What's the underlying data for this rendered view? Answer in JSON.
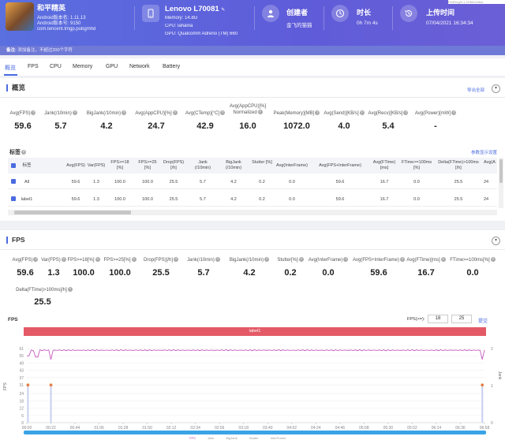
{
  "header": {
    "app_name": "和平精英",
    "android_ver_label": "Android版本名:",
    "android_ver_value": "1.11.13",
    "android_code_label": "Android版本号:",
    "android_code_value": "9150",
    "package": "com.tencent.tmgp.pubgmhd",
    "device_name": "Lenovo L70081",
    "memory": "Memory: 14.8G",
    "cpu": "CPU: lahaina",
    "gpu": "GPU: Qualcomm Adreno (TM) 660",
    "creator_title": "创建者",
    "creator_value": "金飞的猫猫",
    "duration_title": "时长",
    "duration_value": "0h 7m 4s",
    "upload_title": "上传时间",
    "upload_value": "07/04/2021 16:34:34",
    "topright_fragment": "PerfDog/3.1.210604:Mac",
    "icons": [
      "phone-icon",
      "user-icon",
      "clock-icon",
      "history-icon"
    ]
  },
  "notebar": {
    "label": "备注:",
    "text": "添加备注，不超过200个字符"
  },
  "tabs": [
    {
      "label": "概览",
      "active": true
    },
    {
      "label": "FPS"
    },
    {
      "label": "CPU"
    },
    {
      "label": "Memory"
    },
    {
      "label": "GPU"
    },
    {
      "label": "Network"
    },
    {
      "label": "Battery"
    }
  ],
  "overview": {
    "title": "概览",
    "export": "导出全部",
    "metrics": [
      {
        "label": "Avg(FPS)",
        "value": "59.6"
      },
      {
        "label": "Jank(/10min)",
        "value": "5.7"
      },
      {
        "label": "BigJank(/10min)",
        "value": "4.2"
      },
      {
        "label": "Avg(AppCPU)[%]",
        "value": "24.7"
      },
      {
        "label": "Avg(CTemp)[°C]",
        "value": "42.9"
      },
      {
        "label": "Avg(AppCPU)[%] Normalized",
        "value": "16.0"
      },
      {
        "label": "Peak(Memory)[MB]",
        "value": "1072.0"
      },
      {
        "label": "Avg(Send)[KB/s]",
        "value": "4.0"
      },
      {
        "label": "Avg(Recv)[KB/s]",
        "value": "5.4"
      },
      {
        "label": "Avg(Power)[mW]",
        "value": "-"
      }
    ]
  },
  "table": {
    "label": "标签",
    "link": "参数显示设置",
    "headers": [
      "标签",
      "Avg(FPS)",
      "Var(FPS)",
      "FPS>=18 [%]",
      "FPS>=25 [%]",
      "Drop(FPS) [/h]",
      "Jank (/10min)",
      "BigJank (/10min)",
      "Stutter [%]",
      "Avg(InterFrame)",
      "Avg(FPS+InterFrame)",
      "Avg(FTime) [ms]",
      "FTime>=100ms [%]",
      "Delta(FTime)>100ms [/h]",
      "Avg(A"
    ],
    "rows": [
      [
        "All",
        "59.6",
        "1.3",
        "100.0",
        "100.0",
        "25.5",
        "5.7",
        "4.2",
        "0.2",
        "0.0",
        "59.6",
        "16.7",
        "0.0",
        "25.5",
        "24"
      ],
      [
        "label1",
        "59.6",
        "1.3",
        "100.0",
        "100.0",
        "25.5",
        "5.7",
        "4.2",
        "0.2",
        "0.0",
        "59.6",
        "16.7",
        "0.0",
        "25.5",
        "24"
      ]
    ]
  },
  "fps_section": {
    "title": "FPS",
    "metrics": [
      {
        "label": "Avg(FPS)",
        "value": "59.6"
      },
      {
        "label": "Var(FPS)",
        "value": "1.3"
      },
      {
        "label": "FPS>=18[%]",
        "value": "100.0"
      },
      {
        "label": "FPS>=25[%]",
        "value": "100.0"
      },
      {
        "label": "Drop(FPS)[/h]",
        "value": "25.5"
      },
      {
        "label": "Jank(/10min)",
        "value": "5.7"
      },
      {
        "label": "BigJank(/10min)",
        "value": "4.2"
      },
      {
        "label": "Stutter[%]",
        "value": "0.2"
      },
      {
        "label": "Avg(InterFrame)",
        "value": "0.0"
      },
      {
        "label": "Avg(FPS+InterFrame)",
        "value": "59.6"
      },
      {
        "label": "Avg(FTime)[ms]",
        "value": "16.7"
      },
      {
        "label": "FTime>=100ms[%]",
        "value": "0.0"
      },
      {
        "label": "Delta(FTime)>100ms[/h]",
        "value": "25.5"
      }
    ],
    "chart_title": "FPS",
    "fps_input_label": "FPS(>=):",
    "fps_input_1": "18",
    "fps_input_2": "25",
    "fps_ok": "提交",
    "label_bar": "label1",
    "legend": [
      "FPS",
      "Jank",
      "BigJank",
      "Stutter",
      "InterFrame"
    ]
  },
  "chart_data": {
    "type": "line",
    "title": "FPS",
    "ylabel_left": "FPS",
    "ylabel_right": "Jank",
    "x_ticks": [
      "00:00",
      "00:22",
      "00:44",
      "01:06",
      "01:28",
      "01:50",
      "02:12",
      "02:34",
      "02:56",
      "03:18",
      "03:40",
      "04:02",
      "04:24",
      "04:46",
      "05:08",
      "05:30",
      "05:52",
      "06:14",
      "06:36",
      "06:58"
    ],
    "y_ticks_left": [
      0,
      6,
      12,
      18,
      24,
      31,
      37,
      43,
      49,
      55,
      61
    ],
    "y_ticks_right": [
      0,
      1,
      2
    ],
    "ylim": [
      0,
      61
    ],
    "series": [
      {
        "name": "FPS",
        "color": "#c04ab8",
        "approx_value": 59.6,
        "dips": [
          {
            "x": "00:01",
            "y": 55
          },
          {
            "x": "00:09",
            "y": 54
          },
          {
            "x": "00:22",
            "y": 52
          },
          {
            "x": "06:56",
            "y": 52
          }
        ]
      },
      {
        "name": "Jank",
        "color": "#e8a04a",
        "events_x": [
          "00:01",
          "00:22",
          "06:56"
        ]
      },
      {
        "name": "BigJank",
        "color": "#e35a66",
        "events_x": [
          "00:01",
          "00:22",
          "06:56"
        ]
      }
    ]
  }
}
